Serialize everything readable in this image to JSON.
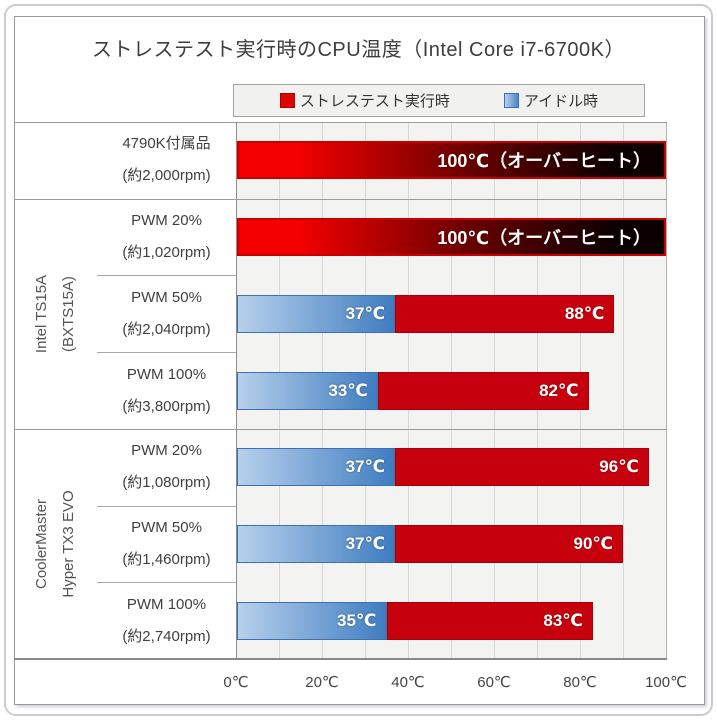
{
  "chart_data": {
    "type": "bar",
    "orientation": "horizontal",
    "title": "ストレステスト実行時のCPU温度（Intel Core i7-6700K）",
    "legend": [
      {
        "name": "ストレステスト実行時",
        "color": "#dd0404"
      },
      {
        "name": "アイドル時",
        "color": "#4a86c8"
      }
    ],
    "xlabel": "",
    "ylabel": "",
    "xlim": [
      0,
      100
    ],
    "axis_ticks": [
      "0℃",
      "20℃",
      "40℃",
      "60℃",
      "80℃",
      "100℃"
    ],
    "grid": "vertical minor every 10℃",
    "groups": [
      {
        "label": "",
        "label2": "",
        "row_start": 0,
        "row_count": 1
      },
      {
        "label": "Intel TS15A",
        "label2": "(BXTS15A)",
        "row_start": 1,
        "row_count": 3
      },
      {
        "label": "CoolerMaster",
        "label2": "Hyper TX3 EVO",
        "row_start": 4,
        "row_count": 3
      }
    ],
    "rows": [
      {
        "label": "4790K付属品",
        "sub": "(約2,000rpm)",
        "type": "overheat",
        "stress": 100,
        "stress_label": "100℃（オーバーヒート）"
      },
      {
        "label": "PWM 20%",
        "sub": "(約1,020rpm)",
        "type": "overheat",
        "stress": 100,
        "stress_label": "100℃（オーバーヒート）"
      },
      {
        "label": "PWM 50%",
        "sub": "(約2,040rpm)",
        "type": "normal",
        "idle": 37,
        "stress": 88,
        "idle_label": "37℃",
        "stress_label": "88℃"
      },
      {
        "label": "PWM 100%",
        "sub": "(約3,800rpm)",
        "type": "normal",
        "idle": 33,
        "stress": 82,
        "idle_label": "33℃",
        "stress_label": "82℃"
      },
      {
        "label": "PWM 20%",
        "sub": "(約1,080rpm)",
        "type": "normal",
        "idle": 37,
        "stress": 96,
        "idle_label": "37℃",
        "stress_label": "96℃"
      },
      {
        "label": "PWM 50%",
        "sub": "(約1,460rpm)",
        "type": "normal",
        "idle": 37,
        "stress": 90,
        "idle_label": "37℃",
        "stress_label": "90℃"
      },
      {
        "label": "PWM 100%",
        "sub": "(約2,740rpm)",
        "type": "normal",
        "idle": 35,
        "stress": 83,
        "idle_label": "35℃",
        "stress_label": "83℃"
      }
    ],
    "colors": {
      "stress_solid": "#c7000e",
      "stress_border": "#a80009",
      "idle_start": "#b7d0ec",
      "idle_end": "#3f7dc0",
      "idle_border": "#3f6fae",
      "overheat_start": "#f40000",
      "overheat_mid": "#700000",
      "overheat_end": "#0d0000",
      "overheat_border": "#c90000",
      "plot_background": "#f3f3f2",
      "gridline": "#d7d7d7"
    }
  }
}
